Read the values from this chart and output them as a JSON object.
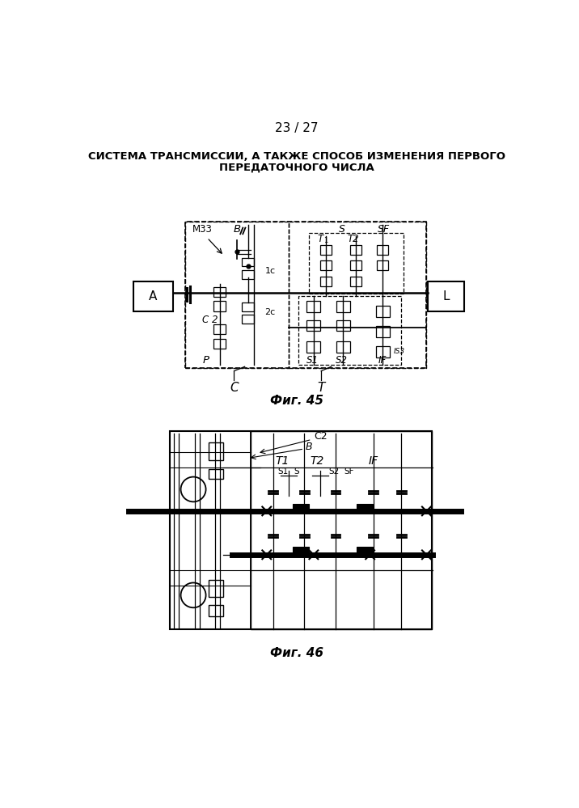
{
  "page_number": "23 / 27",
  "title_line1": "СИСТЕМА ТРАНСМИССИИ, А ТАКЖЕ СПОСОБ ИЗМЕНЕНИЯ ПЕРВОГО",
  "title_line2": "ПЕРЕДАТОЧНОГО ЧИСЛА",
  "fig45_caption": "Фиг. 45",
  "fig46_caption": "Фиг. 46",
  "background_color": "#ffffff",
  "line_color": "#000000"
}
